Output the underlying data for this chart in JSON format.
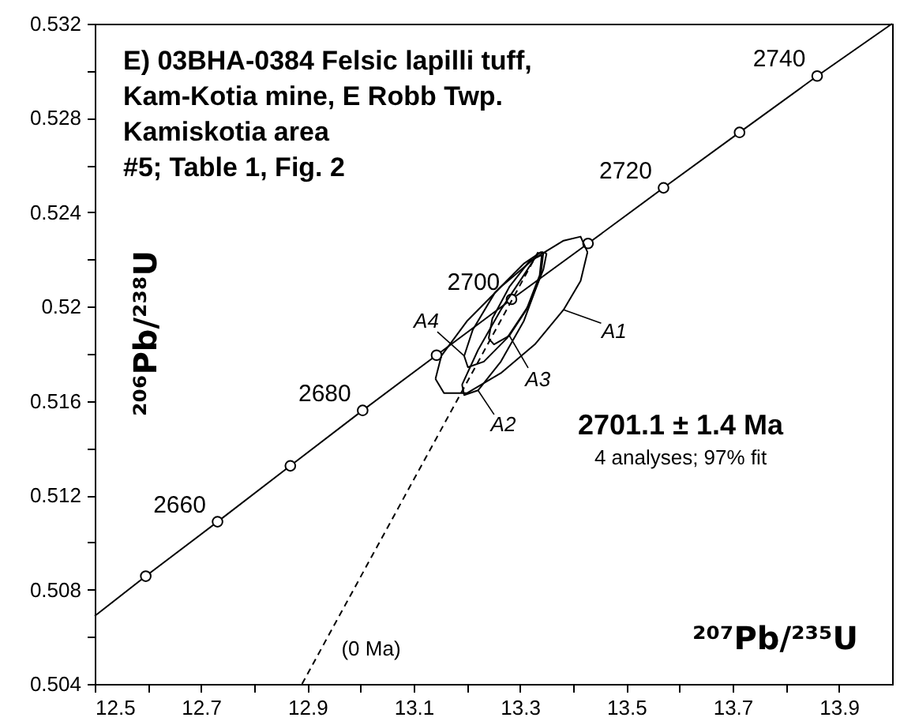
{
  "chart_data": {
    "type": "line",
    "title": "E) 03BHA-0384  Felsic lapilli tuff,\nKam-Kotia mine, E Robb Twp.\nKamiskotia area\n#5; Table 1, Fig. 2",
    "xlabel": "²⁰⁷Pb/²³⁵U",
    "ylabel": "²⁰⁶Pb/²³⁸U",
    "xlim": [
      12.5,
      14.0
    ],
    "ylim": [
      0.504,
      0.532
    ],
    "xticks": [
      12.5,
      {
        "value": 12.6,
        "label": null
      },
      12.7,
      {
        "value": 12.8,
        "label": null
      },
      12.9,
      {
        "value": 13.0,
        "label": null
      },
      13.1,
      {
        "value": 13.2,
        "label": null
      },
      13.3,
      {
        "value": 13.4,
        "label": null
      },
      13.5,
      {
        "value": 13.6,
        "label": null
      },
      13.7,
      {
        "value": 13.8,
        "label": null
      },
      13.9
    ],
    "yticks": [
      0.504,
      {
        "value": 0.506,
        "label": null
      },
      0.508,
      {
        "value": 0.51,
        "label": null
      },
      0.512,
      {
        "value": 0.514,
        "label": null
      },
      0.516,
      {
        "value": 0.518,
        "label": null
      },
      0.52,
      {
        "value": 0.522,
        "label": null
      },
      0.524,
      {
        "value": 0.526,
        "label": null
      },
      0.528,
      {
        "value": 0.53,
        "label": null
      },
      0.532
    ],
    "grid": false,
    "series": [
      {
        "color": "#000000",
        "marker": "none",
        "line_style": "solid",
        "x": [
          12.5,
          12.596,
          12.731,
          12.868,
          13.004,
          13.143,
          13.284,
          13.428,
          13.57,
          13.713,
          13.859,
          14.0
        ],
        "values": [
          0.50688,
          0.50857,
          0.51088,
          0.51325,
          0.5156,
          0.51794,
          0.52031,
          0.52268,
          0.52504,
          0.52739,
          0.52978,
          0.532
        ]
      },
      {
        "type": "scatter",
        "color": "#000000",
        "marker": "circle",
        "x": [
          12.596,
          12.731,
          12.868,
          13.004,
          13.143,
          13.284,
          13.428,
          13.57,
          13.713,
          13.859
        ],
        "values": [
          0.50857,
          0.51088,
          0.51325,
          0.5156,
          0.51794,
          0.52031,
          0.52268,
          0.52504,
          0.52739,
          0.52978
        ]
      },
      {
        "color": "#000000",
        "marker": "none",
        "line_style": "dashed",
        "x": [
          12.89,
          13.334
        ],
        "values": [
          0.504,
          0.52231
        ]
      },
      {
        "color": "#000000",
        "marker": "none",
        "line_style": "solid",
        "x": [
          13.141,
          13.152,
          13.2,
          13.264,
          13.328,
          13.382,
          13.414,
          13.427
        ],
        "values": [
          0.51694,
          0.51791,
          0.51938,
          0.52084,
          0.52206,
          0.5228,
          0.52297,
          0.52231
        ]
      },
      {
        "color": "#000000",
        "marker": "none",
        "line_style": "solid",
        "x": [
          13.141,
          13.157,
          13.2,
          13.264,
          13.328,
          13.382,
          13.414,
          13.427
        ],
        "values": [
          0.51694,
          0.51633,
          0.51633,
          0.51718,
          0.5184,
          0.51987,
          0.52109,
          0.52231
        ]
      },
      {
        "color": "#000000",
        "marker": "none",
        "line_style": "solid",
        "x": [
          13.191,
          13.221,
          13.264,
          13.307,
          13.334,
          13.344
        ],
        "values": [
          0.51669,
          0.51816,
          0.51987,
          0.52133,
          0.52226,
          0.52231
        ]
      },
      {
        "color": "#000000",
        "marker": "none",
        "line_style": "solid",
        "x": [
          13.191,
          13.195,
          13.221,
          13.264,
          13.307,
          13.339,
          13.344
        ],
        "values": [
          0.51669,
          0.51625,
          0.51645,
          0.51767,
          0.51938,
          0.52133,
          0.52231
        ]
      },
      {
        "color": "#000000",
        "marker": "none",
        "line_style": "solid",
        "x": [
          13.241,
          13.248,
          13.28,
          13.318,
          13.341
        ],
        "values": [
          0.51865,
          0.5195,
          0.52084,
          0.52194,
          0.52219
        ]
      },
      {
        "color": "#000000",
        "marker": "none",
        "line_style": "solid",
        "x": [
          13.241,
          13.251,
          13.28,
          13.312,
          13.337,
          13.341
        ],
        "values": [
          0.51865,
          0.5184,
          0.51877,
          0.51987,
          0.52133,
          0.52219
        ]
      },
      {
        "color": "#000000",
        "marker": "none",
        "line_style": "solid",
        "x": [
          13.195,
          13.211,
          13.253,
          13.307,
          13.339,
          13.35
        ],
        "values": [
          0.51791,
          0.51901,
          0.5206,
          0.52182,
          0.52231,
          0.52226
        ]
      },
      {
        "color": "#000000",
        "marker": "none",
        "line_style": "solid",
        "x": [
          13.195,
          13.202,
          13.232,
          13.275,
          13.318,
          13.344,
          13.35
        ],
        "values": [
          0.51791,
          0.51743,
          0.51767,
          0.51865,
          0.52011,
          0.52158,
          0.52226
        ]
      }
    ],
    "annotations": [
      {
        "text": "2660",
        "x": 12.731,
        "y": 0.51088
      },
      {
        "text": "2680",
        "x": 13.004,
        "y": 0.5156
      },
      {
        "text": "2700",
        "x": 13.284,
        "y": 0.52031
      },
      {
        "text": "2720",
        "x": 13.57,
        "y": 0.52504
      },
      {
        "text": "2740",
        "x": 13.859,
        "y": 0.52978
      },
      "2701.1 ± 1.4 Ma",
      "4 analyses; 97% fit",
      "(0 Ma)",
      {
        "text": "A1",
        "x": 13.382,
        "y": 0.51987
      },
      {
        "text": "A2",
        "x": 13.221,
        "y": 0.51645
      },
      {
        "text": "A3",
        "x": 13.28,
        "y": 0.51877
      },
      {
        "text": "A4",
        "x": 13.195,
        "y": 0.51791
      }
    ]
  }
}
